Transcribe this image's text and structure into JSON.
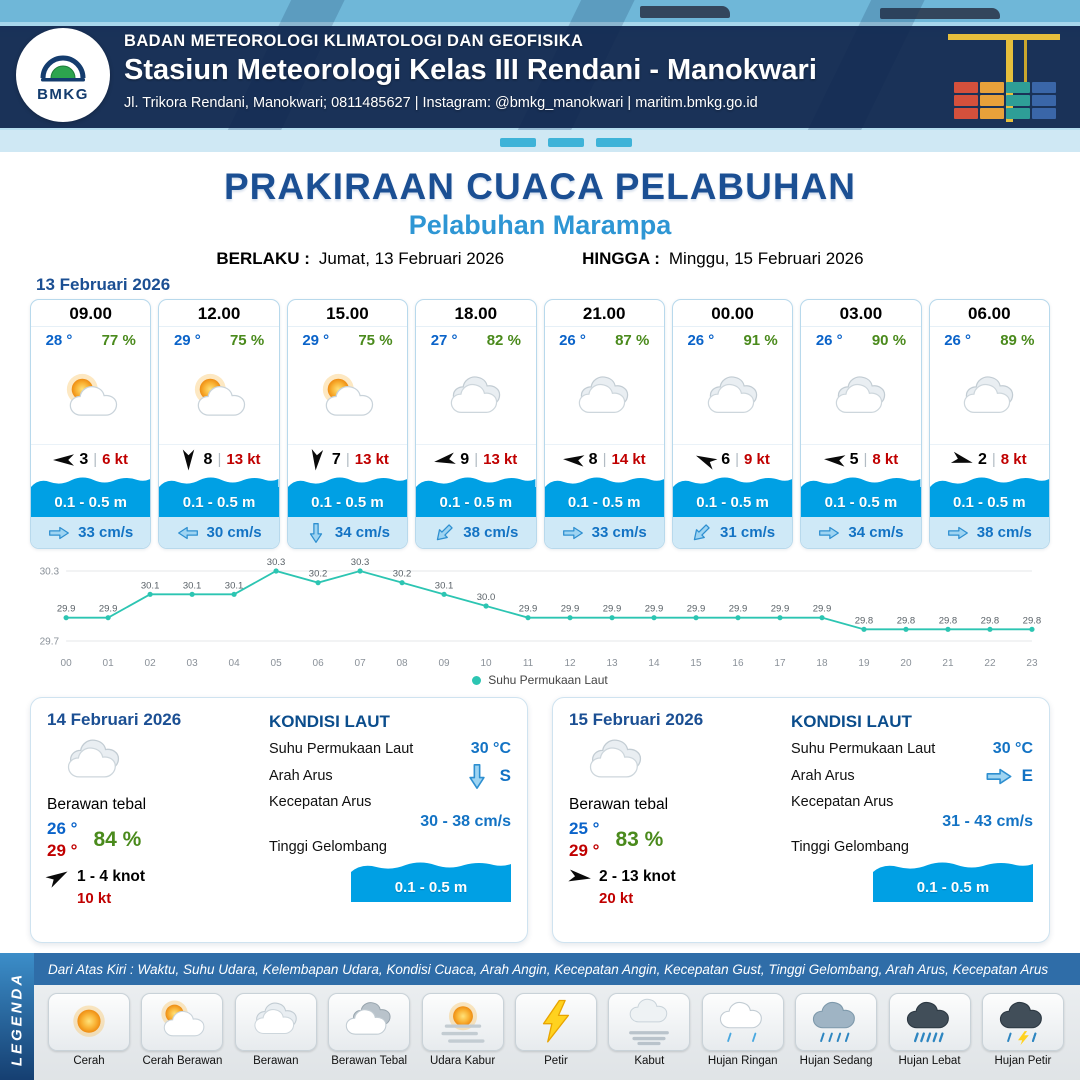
{
  "colors": {
    "navy": "#0d264f",
    "title_blue": "#1b4f93",
    "subtitle_blue": "#2e96d4",
    "temp_blue": "#0a63c9",
    "rh_green": "#4a8a1c",
    "alert_red": "#c00000",
    "wave_blue": "#00a0e4",
    "strip_blue": "#cfe9f7",
    "card_border": "#b8d9ec",
    "chart_line": "#2cc5b2",
    "band_blue": "#2f6da8",
    "value_blue": "#1373c4"
  },
  "ui": {
    "separator": "|"
  },
  "header": {
    "logo": "BMKG",
    "org": "BADAN METEOROLOGI KLIMATOLOGI DAN GEOFISIKA",
    "station": "Stasiun Meteorologi Kelas III Rendani - Manokwari",
    "contact": "Jl. Trikora Rendani, Manokwari; 0811485627 | Instagram: @bmkg_manokwari | maritim.bmkg.go.id"
  },
  "title": {
    "main": "PRAKIRAAN CUACA PELABUHAN",
    "sub": "Pelabuhan Marampa",
    "berlaku_label": "BERLAKU :",
    "berlaku_value": "Jumat, 13 Februari 2026",
    "hingga_label": "HINGGA :",
    "hingga_value": "Minggu, 15 Februari 2026"
  },
  "forecast_day": {
    "date": "13 Februari 2026",
    "cards": [
      {
        "time": "09.00",
        "temp": "28 °",
        "rh": "77 %",
        "icon": "sun-cloud",
        "wind_rot": 180,
        "wind_val": "3",
        "wind_kt": "6 kt",
        "wave": "0.1 - 0.5 m",
        "cur_rot": 0,
        "cur": "33 cm/s"
      },
      {
        "time": "12.00",
        "temp": "29 °",
        "rh": "75 %",
        "icon": "sun-cloud",
        "wind_rot": 90,
        "wind_val": "8",
        "wind_kt": "13 kt",
        "wave": "0.1 - 0.5 m",
        "cur_rot": 180,
        "cur": "30 cm/s"
      },
      {
        "time": "15.00",
        "temp": "29 °",
        "rh": "75 %",
        "icon": "sun-cloud",
        "wind_rot": 95,
        "wind_val": "7",
        "wind_kt": "13 kt",
        "wave": "0.1 - 0.5 m",
        "cur_rot": 90,
        "cur": "34 cm/s"
      },
      {
        "time": "18.00",
        "temp": "27 °",
        "rh": "82 %",
        "icon": "cloud",
        "wind_rot": 170,
        "wind_val": "9",
        "wind_kt": "13 kt",
        "wave": "0.1 - 0.5 m",
        "cur_rot": 135,
        "cur": "38 cm/s"
      },
      {
        "time": "21.00",
        "temp": "26 °",
        "rh": "87 %",
        "icon": "cloud",
        "wind_rot": 185,
        "wind_val": "8",
        "wind_kt": "14 kt",
        "wave": "0.1 - 0.5 m",
        "cur_rot": 0,
        "cur": "33 cm/s"
      },
      {
        "time": "00.00",
        "temp": "26 °",
        "rh": "91 %",
        "icon": "cloud",
        "wind_rot": 205,
        "wind_val": "6",
        "wind_kt": "9 kt",
        "wave": "0.1 - 0.5 m",
        "cur_rot": 135,
        "cur": "31 cm/s"
      },
      {
        "time": "03.00",
        "temp": "26 °",
        "rh": "90 %",
        "icon": "cloud",
        "wind_rot": 185,
        "wind_val": "5",
        "wind_kt": "8 kt",
        "wave": "0.1 - 0.5 m",
        "cur_rot": 0,
        "cur": "34 cm/s"
      },
      {
        "time": "06.00",
        "temp": "26 °",
        "rh": "89 %",
        "icon": "cloud",
        "wind_rot": 15,
        "wind_val": "2",
        "wind_kt": "8 kt",
        "wave": "0.1 - 0.5 m",
        "cur_rot": 0,
        "cur": "38 cm/s"
      }
    ]
  },
  "chart_data": {
    "type": "line",
    "series_name": "Suhu Permukaan Laut",
    "x": [
      "00",
      "01",
      "02",
      "03",
      "04",
      "05",
      "06",
      "07",
      "08",
      "09",
      "10",
      "11",
      "12",
      "13",
      "14",
      "15",
      "16",
      "17",
      "18",
      "19",
      "20",
      "21",
      "22",
      "23"
    ],
    "values": [
      29.9,
      29.9,
      30.1,
      30.1,
      30.1,
      30.3,
      30.2,
      30.3,
      30.2,
      30.1,
      30.0,
      29.9,
      29.9,
      29.9,
      29.9,
      29.9,
      29.9,
      29.9,
      29.9,
      29.8,
      29.8,
      29.8,
      29.8,
      29.8
    ],
    "ylim": [
      29.7,
      30.3
    ],
    "line_color": "#2cc5b2",
    "xlabel": "",
    "ylabel": "",
    "grid": "top-bottom-horizontal",
    "legend_position": "bottom"
  },
  "day_cards": [
    {
      "date": "14 Februari 2026",
      "icon": "cloud",
      "condition": "Berawan tebal",
      "temp_min": "26 °",
      "temp_max": "29 °",
      "rh": "84 %",
      "wind_rot": -30,
      "wind_range": "1  - 4 knot",
      "gust": "10 kt",
      "sea_title": "KONDISI LAUT",
      "sst_label": "Suhu Permukaan Laut",
      "sst": "30 °C",
      "current_dir_label": "Arah Arus",
      "cur_rot": 90,
      "cur_dir": "S",
      "current_speed_label": "Kecepatan Arus",
      "current_speed": "30  - 38 cm/s",
      "wave_label": "Tinggi Gelombang",
      "wave": "0.1 - 0.5 m"
    },
    {
      "date": "15 Februari 2026",
      "icon": "cloud",
      "condition": "Berawan tebal",
      "temp_min": "25 °",
      "temp_max": "29 °",
      "rh": "83 %",
      "wind_rot": 8,
      "wind_range": "2  - 13 knot",
      "gust": "20 kt",
      "sea_title": "KONDISI LAUT",
      "sst_label": "Suhu Permukaan Laut",
      "sst": "30 °C",
      "current_dir_label": "Arah Arus",
      "cur_rot": 0,
      "cur_dir": "E",
      "current_speed_label": "Kecepatan Arus",
      "current_speed": "31  - 43 cm/s",
      "wave_label": "Tinggi Gelombang",
      "wave": "0.1 - 0.5 m"
    }
  ],
  "legend": {
    "side_label": "LEGENDA",
    "band_text": "Dari Atas Kiri : Waktu, Suhu Udara, Kelembapan Udara, Kondisi Cuaca, Arah Angin, Kecepatan Angin, Kecepatan Gust, Tinggi Gelombang, Arah Arus, Kecepatan Arus",
    "items": [
      {
        "icon": "sun",
        "label": "Cerah"
      },
      {
        "icon": "sun-cloud",
        "label": "Cerah Berawan"
      },
      {
        "icon": "cloud",
        "label": "Berawan"
      },
      {
        "icon": "cloud-thick",
        "label": "Berawan Tebal"
      },
      {
        "icon": "haze",
        "label": "Udara Kabur"
      },
      {
        "icon": "thunder",
        "label": "Petir"
      },
      {
        "icon": "fog",
        "label": "Kabut"
      },
      {
        "icon": "rain-light",
        "label": "Hujan Ringan"
      },
      {
        "icon": "rain-medium",
        "label": "Hujan Sedang"
      },
      {
        "icon": "rain-heavy",
        "label": "Hujan Lebat"
      },
      {
        "icon": "rain-thunder",
        "label": "Hujan Petir"
      }
    ]
  }
}
